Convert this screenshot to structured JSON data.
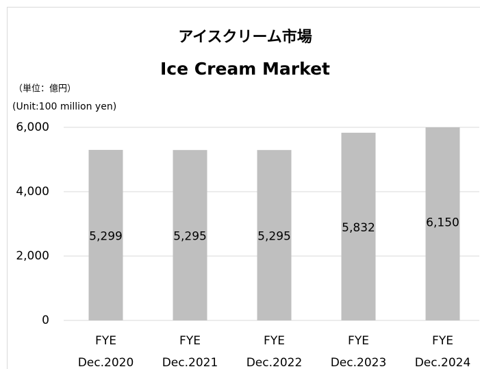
{
  "chart_data": {
    "type": "bar",
    "title": "アイスクリーム市場",
    "subtitle": "Ice Cream Market",
    "annotations": [
      "（単位：億円）",
      "(Unit:100 million yen)"
    ],
    "categories": [
      [
        "FYE",
        "Dec.2020"
      ],
      [
        "FYE",
        "Dec.2021"
      ],
      [
        "FYE",
        "Dec.2022"
      ],
      [
        "FYE",
        "Dec.2023"
      ],
      [
        "FYE",
        "Dec.2024"
      ]
    ],
    "values": [
      5299,
      5295,
      5295,
      5832,
      6150
    ],
    "value_labels": [
      "5,299",
      "5,295",
      "5,295",
      "5,832",
      "6,150"
    ],
    "color": "#bfbfbf",
    "ylim": [
      0,
      6000
    ],
    "yticks": [
      0,
      {
        "value": 2000,
        "label": "2,000"
      },
      {
        "value": 4000,
        "label": "4,000"
      },
      {
        "value": 6000,
        "label": "6,000"
      }
    ],
    "grid": true
  }
}
